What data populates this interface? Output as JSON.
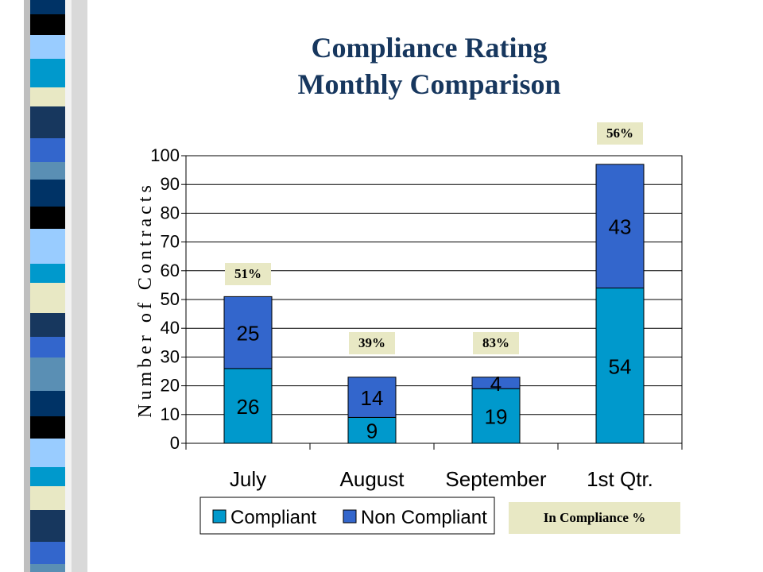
{
  "slide": {
    "title_line1": "Compliance Rating",
    "title_line2": "Monthly Comparison",
    "compliance_legend": "In Compliance %"
  },
  "colors": {
    "compliant": "#0099CC",
    "non_compliant": "#3366CC",
    "title": "#17375E",
    "pct_box": "#E8E8C4"
  },
  "chart_data": {
    "type": "bar",
    "stacked": true,
    "categories": [
      "July",
      "August",
      "September",
      "1st Qtr."
    ],
    "series": [
      {
        "name": "Compliant",
        "values": [
          26,
          9,
          19,
          54
        ]
      },
      {
        "name": "Non Compliant",
        "values": [
          25,
          14,
          4,
          43
        ]
      }
    ],
    "annotations": [
      "51%",
      "39%",
      "83%",
      "56%"
    ],
    "ylabel": "Number of Contracts",
    "xlabel": "",
    "ylim": [
      0,
      100
    ],
    "yticks": [
      0,
      10,
      20,
      30,
      40,
      50,
      60,
      70,
      80,
      90,
      100
    ],
    "grid": true,
    "legend": "bottom"
  }
}
